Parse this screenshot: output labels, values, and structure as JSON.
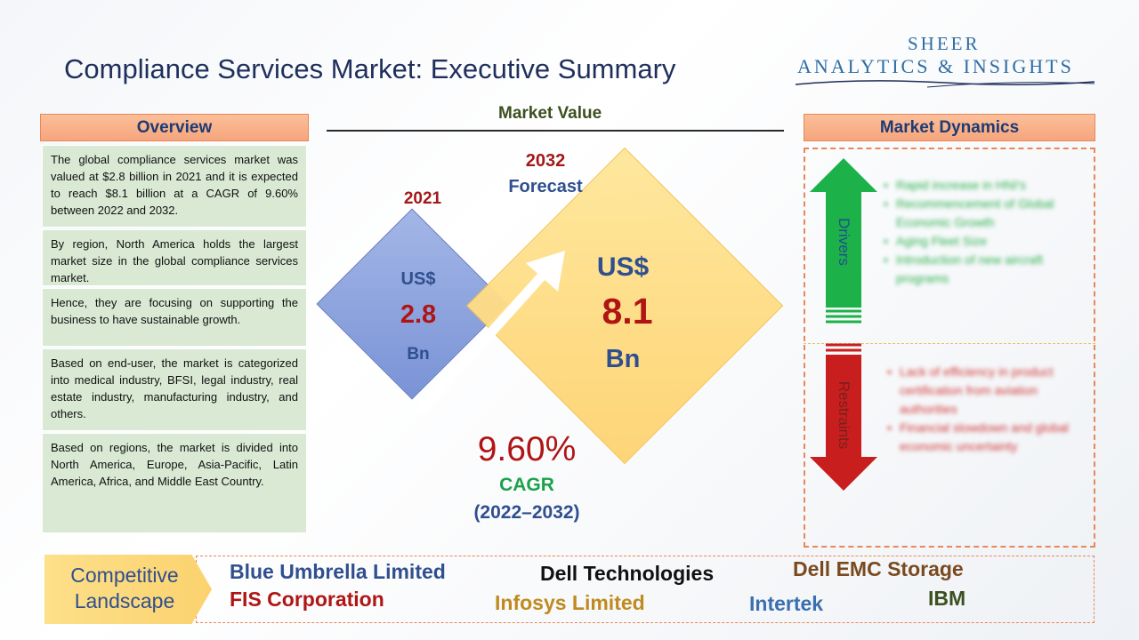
{
  "title": "Compliance Services Market: Executive Summary",
  "logo": {
    "line1": "SHEER",
    "line2": "ANALYTICS & INSIGHTS"
  },
  "overview": {
    "header": "Overview",
    "paragraphs": [
      "The global compliance services market was valued at $2.8 billion in 2021 and it is expected to reach $8.1 billion at a CAGR of 9.60% between 2022 and 2032.",
      "By region, North America holds the largest market size in the global compliance services market.",
      "Hence, they are focusing on supporting the business to have sustainable growth.",
      "Based on end-user, the market is categorized into medical industry, BFSI, legal industry, real estate industry, manufacturing industry, and others.",
      "Based on regions, the market is divided into North America, Europe, Asia-Pacific, Latin America, Africa, and Middle East Country."
    ]
  },
  "market_value": {
    "title": "Market Value",
    "y2021": {
      "year": "2021",
      "currency": "US$",
      "value": "2.8",
      "unit": "Bn"
    },
    "y2032": {
      "year": "2032",
      "label": "Forecast",
      "currency": "US$",
      "value": "8.1",
      "unit": "Bn"
    },
    "cagr": {
      "value": "9.60%",
      "label": "CAGR",
      "period": "(2022–2032)"
    }
  },
  "dynamics": {
    "header": "Market Dynamics",
    "drivers_label": "Drivers",
    "restraints_label": "Restraints",
    "drivers": [
      "Rapid increase in HNI's",
      "Recommencement of Global Economic Growth",
      "Aging Fleet Size",
      "Introduction of new aircraft programs"
    ],
    "restraints": [
      "Lack of efficiency in product certification from aviation authorities",
      "Financial slowdown and global economic uncertainty"
    ]
  },
  "competitive": {
    "label": "Competitive Landscape",
    "companies": [
      "Blue Umbrella Limited",
      "Dell Technologies",
      "Dell EMC Storage",
      "FIS Corporation",
      "Infosys Limited",
      "Intertek",
      "IBM"
    ]
  },
  "colors": {
    "title": "#1f2f5c",
    "header_fill": "#f6a57d",
    "overview_fill": "#d9e9d3",
    "diamond_2021": "#8fa4de",
    "diamond_2032": "#ffdc85",
    "driver_arrow": "#1db14a",
    "restraint_arrow": "#c81e1e",
    "value_red": "#b01515",
    "cagr_green": "#1aa24a"
  },
  "icons": [
    "up-arrow-icon",
    "down-arrow-icon",
    "growth-arrow-icon"
  ]
}
